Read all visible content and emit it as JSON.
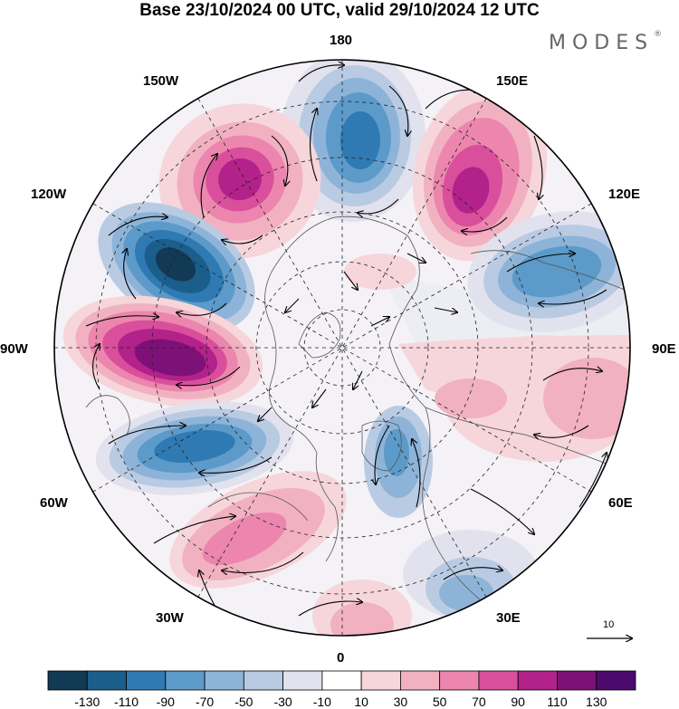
{
  "title": "Base 23/10/2024 00 UTC, valid 29/10/2024 12 UTC",
  "brand": "MODES",
  "brand_mark": "®",
  "longitude_labels": {
    "lon_180": "180",
    "lon_150e": "150E",
    "lon_120e": "120E",
    "lon_90e": "90E",
    "lon_60e": "60E",
    "lon_30e": "30E",
    "lon_0": "0",
    "lon_30w": "30W",
    "lon_60w": "60W",
    "lon_90w": "90W",
    "lon_120w": "120W",
    "lon_150w": "150W"
  },
  "reference_vector": {
    "value": "10"
  },
  "colorbar": {
    "labels": [
      "-130",
      "-110",
      "-90",
      "-70",
      "-50",
      "-30",
      "-10",
      "10",
      "30",
      "50",
      "70",
      "90",
      "110",
      "130"
    ],
    "colors": [
      "#123a55",
      "#1b5e8c",
      "#2f7ab3",
      "#5c9ac9",
      "#8db4d8",
      "#b9cbe3",
      "#e2e2ee",
      "#ffffff",
      "#f6d6da",
      "#f1b1c1",
      "#ec86ae",
      "#da4f9c",
      "#b3218a",
      "#7d1178",
      "#4d0a6e"
    ]
  },
  "anomaly_centers": [
    {
      "name": "center-1",
      "value": -100,
      "color": "#1b5e8c"
    },
    {
      "name": "center-2",
      "value": 110,
      "color": "#7d1178"
    },
    {
      "name": "center-3",
      "value": -90,
      "color": "#2f7ab3"
    },
    {
      "name": "center-4",
      "value": 100,
      "color": "#b3218a"
    },
    {
      "name": "center-5",
      "value": -80,
      "color": "#2f7ab3"
    },
    {
      "name": "center-6",
      "value": 110,
      "color": "#b3218a"
    },
    {
      "name": "center-7",
      "value": -80,
      "color": "#2f7ab3"
    },
    {
      "name": "center-8",
      "value": 40,
      "color": "#f1b1c1"
    },
    {
      "name": "center-9",
      "value": -50,
      "color": "#5c9ac9"
    },
    {
      "name": "center-10",
      "value": 70,
      "color": "#ec86ae"
    },
    {
      "name": "center-11",
      "value": 30,
      "color": "#f6d6da"
    },
    {
      "name": "center-12",
      "value": -50,
      "color": "#8db4d8"
    }
  ]
}
